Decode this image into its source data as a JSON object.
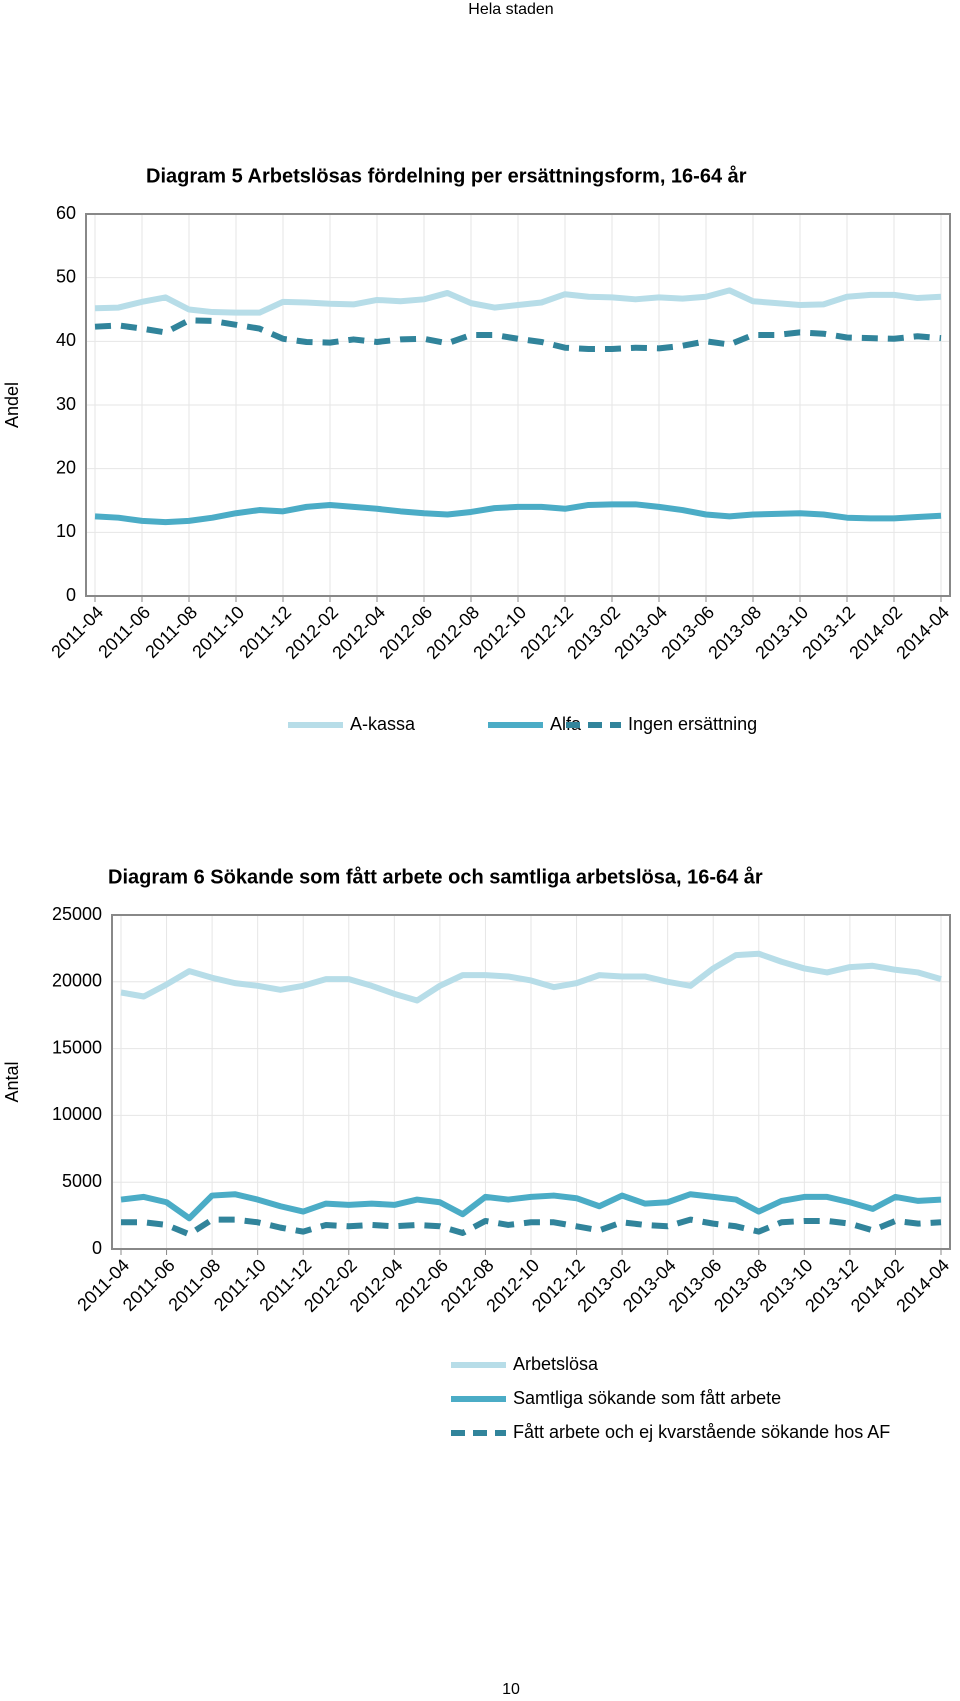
{
  "header": "Hela staden",
  "page_number": "10",
  "chart_data": [
    {
      "type": "line",
      "title": "Diagram 5 Arbetslösas fördelning per ersättningsform, 16-64 år",
      "ylabel": "Andel",
      "categories": [
        "2011-04",
        null,
        "2011-06",
        null,
        "2011-08",
        null,
        "2011-10",
        null,
        "2011-12",
        null,
        "2012-02",
        null,
        "2012-04",
        null,
        "2012-06",
        null,
        "2012-08",
        null,
        "2012-10",
        null,
        "2012-12",
        null,
        "2013-02",
        null,
        "2013-04",
        null,
        "2013-06",
        null,
        "2013-08",
        null,
        "2013-10",
        null,
        "2013-12",
        null,
        "2014-02",
        null,
        "2014-04"
      ],
      "ylim": [
        0,
        60
      ],
      "yticks": [
        0,
        10,
        20,
        30,
        40,
        50,
        60
      ],
      "grid": true,
      "legend": "bottom",
      "series": [
        {
          "name": "A-kassa",
          "color": "#b7dde8",
          "dashed": false,
          "values": [
            45.2,
            45.3,
            46.2,
            46.9,
            45,
            44.6,
            44.5,
            44.5,
            46.2,
            46.1,
            45.9,
            45.8,
            46.5,
            46.3,
            46.6,
            47.6,
            46,
            45.3,
            45.7,
            46.1,
            47.4,
            47,
            46.9,
            46.6,
            46.9,
            46.7,
            47,
            48,
            46.3,
            46,
            45.7,
            45.8,
            47,
            47.3,
            47.3,
            46.8,
            47
          ]
        },
        {
          "name": "Alfa",
          "color": "#4bacc6",
          "dashed": false,
          "values": [
            12.5,
            12.3,
            11.8,
            11.6,
            11.8,
            12.3,
            13,
            13.5,
            13.3,
            14,
            14.3,
            14,
            13.7,
            13.3,
            13,
            12.8,
            13.2,
            13.8,
            14,
            14,
            13.7,
            14.3,
            14.4,
            14.4,
            14,
            13.5,
            12.8,
            12.5,
            12.8,
            12.9,
            13,
            12.8,
            12.3,
            12.2,
            12.2,
            12.4,
            12.6
          ]
        },
        {
          "name": "Ingen ersättning",
          "color": "#31849b",
          "dashed": true,
          "values": [
            42.3,
            42.5,
            42,
            41.4,
            43.3,
            43.2,
            42.6,
            42,
            40.4,
            39.9,
            39.8,
            40.3,
            39.9,
            40.3,
            40.4,
            39.7,
            41,
            41,
            40.4,
            39.9,
            39,
            38.8,
            38.8,
            39,
            38.9,
            39.3,
            40,
            39.5,
            41,
            41,
            41.4,
            41.2,
            40.6,
            40.5,
            40.4,
            40.8,
            40.5
          ]
        }
      ]
    },
    {
      "type": "line",
      "title": "Diagram 6 Sökande som fått arbete och samtliga arbetslösa, 16-64 år",
      "ylabel": "Antal",
      "categories": [
        "2011-04",
        null,
        "2011-06",
        null,
        "2011-08",
        null,
        "2011-10",
        null,
        "2011-12",
        null,
        "2012-02",
        null,
        "2012-04",
        null,
        "2012-06",
        null,
        "2012-08",
        null,
        "2012-10",
        null,
        "2012-12",
        null,
        "2013-02",
        null,
        "2013-04",
        null,
        "2013-06",
        null,
        "2013-08",
        null,
        "2013-10",
        null,
        "2013-12",
        null,
        "2014-02",
        null,
        "2014-04"
      ],
      "ylim": [
        0,
        25000
      ],
      "yticks": [
        0,
        5000,
        10000,
        15000,
        20000,
        25000
      ],
      "grid": true,
      "legend": "bottom",
      "series": [
        {
          "name": "Arbetslösa",
          "color": "#b7dde8",
          "dashed": false,
          "values": [
            19200,
            18900,
            19800,
            20800,
            20300,
            19900,
            19700,
            19400,
            19700,
            20200,
            20200,
            19700,
            19100,
            18600,
            19700,
            20500,
            20500,
            20400,
            20100,
            19600,
            19900,
            20500,
            20400,
            20400,
            20000,
            19700,
            21000,
            22000,
            22100,
            21500,
            21000,
            20700,
            21100,
            21200,
            20900,
            20700,
            20200
          ]
        },
        {
          "name": "Samtliga sökande som fått arbete",
          "color": "#4bacc6",
          "dashed": false,
          "values": [
            3700,
            3900,
            3500,
            2300,
            4000,
            4100,
            3700,
            3200,
            2800,
            3400,
            3300,
            3400,
            3300,
            3700,
            3500,
            2600,
            3900,
            3700,
            3900,
            4000,
            3800,
            3200,
            4000,
            3400,
            3500,
            4100,
            3900,
            3700,
            2800,
            3600,
            3900,
            3900,
            3500,
            3000,
            3900,
            3600,
            3700
          ]
        },
        {
          "name": "Fått arbete och ej kvarstående sökande hos AF",
          "color": "#31849b",
          "dashed": true,
          "values": [
            2000,
            2000,
            1800,
            1100,
            2200,
            2200,
            2000,
            1600,
            1300,
            1800,
            1700,
            1800,
            1700,
            1800,
            1700,
            1200,
            2100,
            1800,
            2000,
            2000,
            1700,
            1400,
            2000,
            1800,
            1700,
            2200,
            1900,
            1700,
            1300,
            2000,
            2100,
            2100,
            1900,
            1400,
            2100,
            1900,
            2000
          ]
        }
      ]
    }
  ]
}
